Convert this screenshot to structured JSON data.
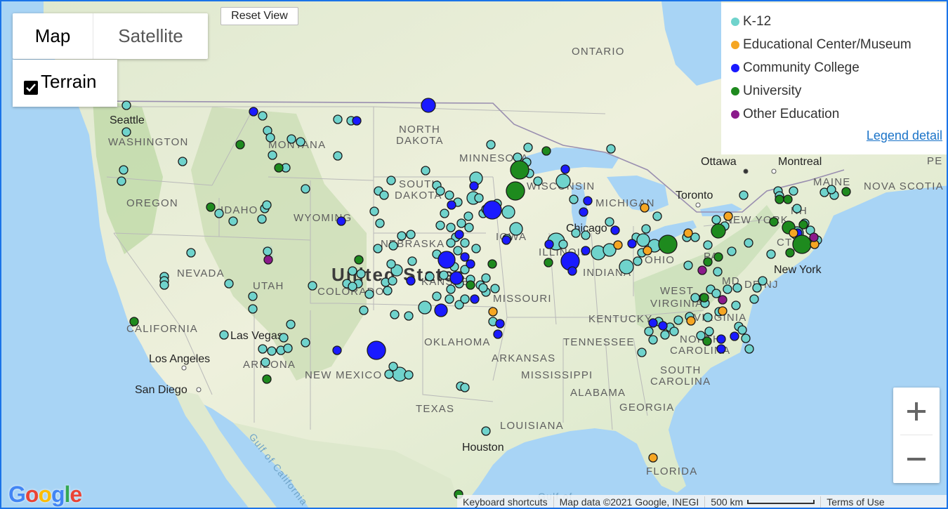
{
  "map_type": {
    "map_label": "Map",
    "satellite_label": "Satellite",
    "terrain_label": "Terrain",
    "terrain_checked": true
  },
  "reset_view_label": "Reset View",
  "legend": {
    "items": [
      {
        "label": "K-12",
        "color": "#6fd3cc"
      },
      {
        "label": "Educational Center/Museum",
        "color": "#f5a623"
      },
      {
        "label": "Community College",
        "color": "#1a1aff"
      },
      {
        "label": "University",
        "color": "#1e8a1e"
      },
      {
        "label": "Other Education",
        "color": "#8b1a8b"
      }
    ],
    "detail_label": "Legend detail"
  },
  "zoom": {
    "in_label": "+",
    "out_label": "−"
  },
  "attribution": {
    "logo": "Google",
    "keyboard": "Keyboard shortcuts",
    "map_data": "Map data ©2021 Google, INEGI",
    "scale": "500 km",
    "terms": "Terms of Use"
  },
  "country_label": "United States",
  "region_labels": [
    "ONTARIO",
    "NORTH DAKOTA",
    "MINNESOTA",
    "WASHINGTON",
    "MONTANA",
    "SOUTH DAKOTA",
    "WISCONSIN",
    "MICHIGAN",
    "OREGON",
    "IDAHO",
    "WYOMING",
    "NEBRASKA",
    "IOWA",
    "ILLINOIS",
    "OHIO",
    "NEVADA",
    "UTAH",
    "COLORADO",
    "KANSAS",
    "MISSOURI",
    "INDIANA",
    "NEW YORK",
    "CALIFORNIA",
    "WEST VIRGINIA",
    "KENTUCKY",
    "VIRGINIA",
    "OKLAHOMA",
    "TENNESSEE",
    "NORTH CAROLINA",
    "ARIZONA",
    "NEW MEXICO",
    "ARKANSAS",
    "MISSISSIPPI",
    "SOUTH CAROLINA",
    "ALABAMA",
    "GEORGIA",
    "TEXAS",
    "LOUISIANA",
    "FLORIDA",
    "MAINE",
    "NOVA SCOTIA",
    "PA",
    "MD",
    "DE",
    "NJ",
    "CT",
    "NH",
    "PE",
    "Gulf of California",
    "Gulf of"
  ],
  "city_labels": [
    "Seattle",
    "Las Vegas",
    "Los Angeles",
    "San Diego",
    "Houston",
    "Chicago",
    "Toronto",
    "Ottawa",
    "Montreal",
    "New York"
  ]
}
